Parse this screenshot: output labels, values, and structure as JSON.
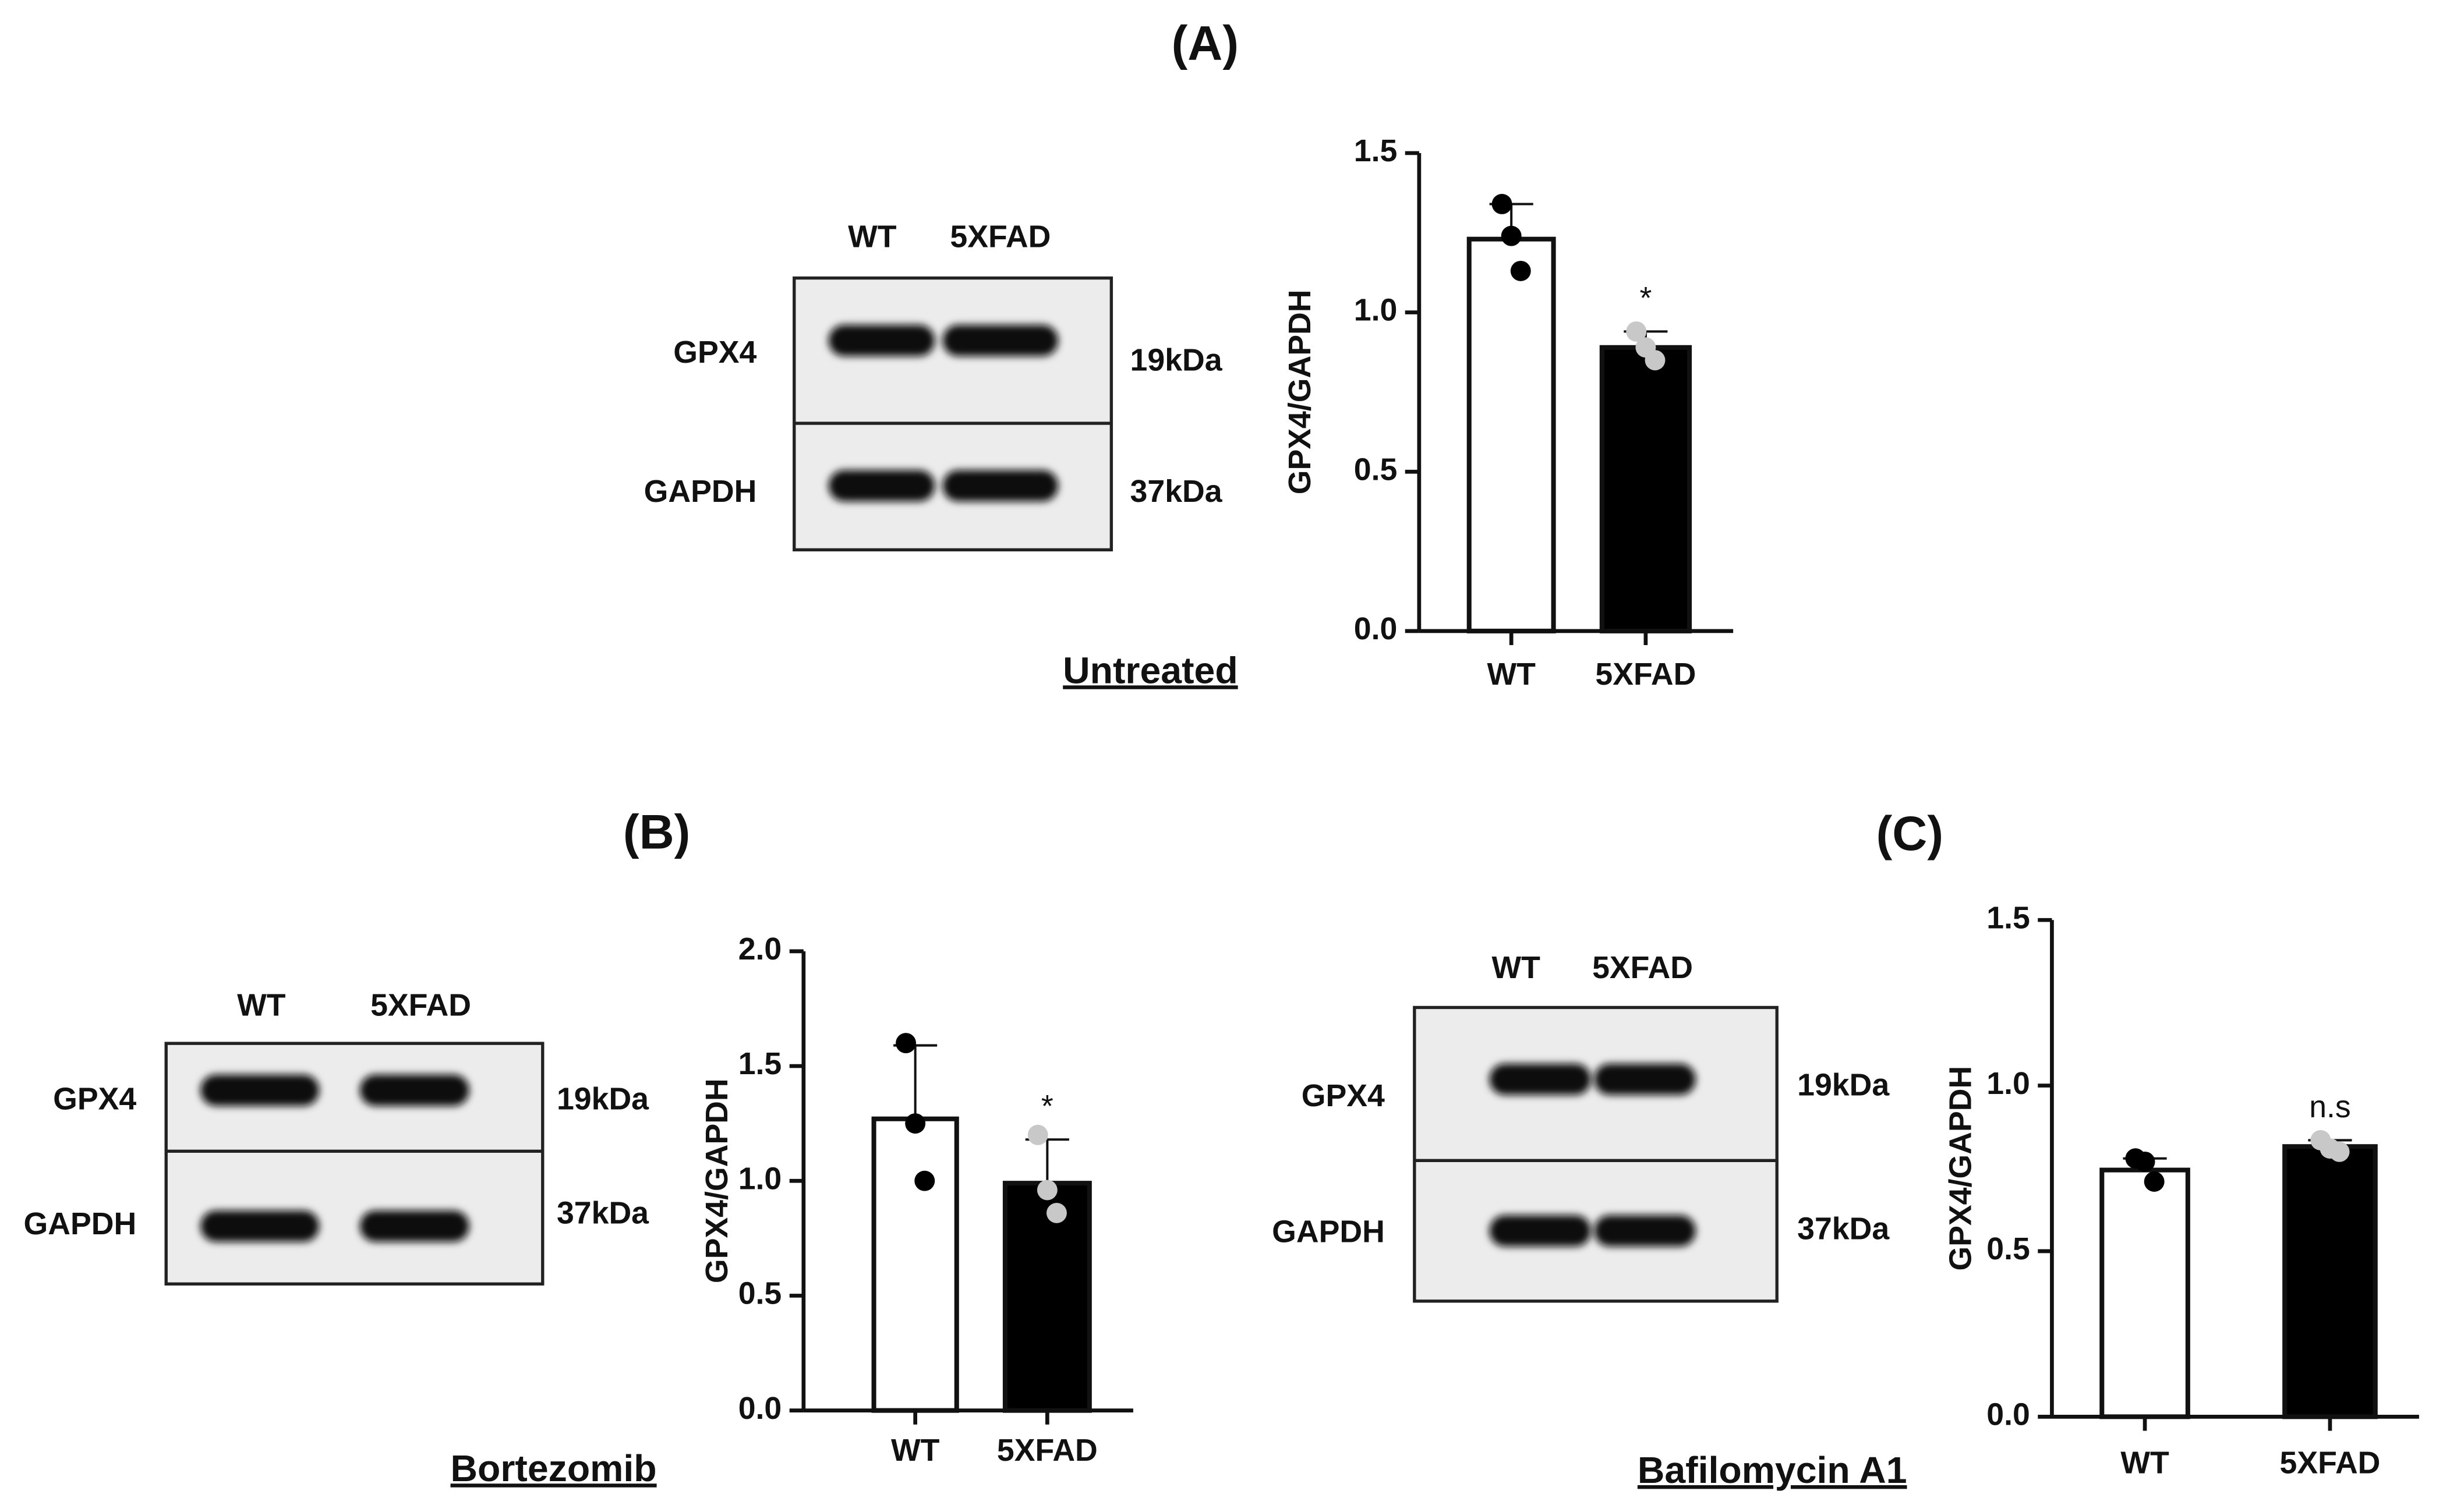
{
  "panels": [
    {
      "title": "(A)",
      "treatment": "Untreated",
      "blot": {
        "lanes": [
          "WT",
          "5XFAD"
        ],
        "rows": [
          "GPX4",
          "GAPDH"
        ],
        "sizes": [
          "19kDa",
          "37kDa"
        ]
      }
    },
    {
      "title": "(B)",
      "treatment": "Bortezomib",
      "blot": {
        "lanes": [
          "WT",
          "5XFAD"
        ],
        "rows": [
          "GPX4",
          "GAPDH"
        ],
        "sizes": [
          "19kDa",
          "37kDa"
        ]
      }
    },
    {
      "title": "(C)",
      "treatment": "Bafilomycin A1",
      "blot": {
        "lanes": [
          "WT",
          "5XFAD"
        ],
        "rows": [
          "GPX4",
          "GAPDH"
        ],
        "sizes": [
          "19kDa",
          "37kDa"
        ]
      }
    }
  ],
  "chart_data": [
    {
      "type": "bar",
      "y_label": "GPX4/GAPDH",
      "categories": [
        "WT",
        "5XFAD"
      ],
      "values": [
        1.23,
        0.89
      ],
      "errors": [
        0.11,
        0.05
      ],
      "points": [
        [
          1.34,
          1.24,
          1.13
        ],
        [
          0.94,
          0.89,
          0.85
        ]
      ],
      "colors": [
        "#ffffff",
        "#000000"
      ],
      "point_colors": [
        "#000000",
        "#c8c8c8"
      ],
      "annotation": "*",
      "ylim": [
        0,
        1.5
      ],
      "yticks": [
        {
          "value": 0,
          "label": "0.0"
        },
        0.5,
        {
          "value": 1,
          "label": "1.0"
        },
        1.5
      ]
    },
    {
      "type": "bar",
      "y_label": "GPX4/GAPDH",
      "categories": [
        "WT",
        "5XFAD"
      ],
      "values": [
        1.27,
        0.99
      ],
      "errors": [
        0.32,
        0.19
      ],
      "points": [
        [
          1.6,
          1.25,
          1.0
        ],
        [
          1.2,
          0.96,
          0.86
        ]
      ],
      "colors": [
        "#ffffff",
        "#000000"
      ],
      "point_colors": [
        "#000000",
        "#c8c8c8"
      ],
      "annotation": "*",
      "ylim": [
        0,
        2
      ],
      "yticks": [
        {
          "value": 0,
          "label": "0.0"
        },
        0.5,
        {
          "value": 1,
          "label": "1.0"
        },
        1.5,
        {
          "value": 2,
          "label": "2.0"
        }
      ]
    },
    {
      "type": "bar",
      "y_label": "GPX4/GAPDH",
      "categories": [
        "WT",
        "5XFAD"
      ],
      "values": [
        0.745,
        0.816
      ],
      "errors": [
        0.035,
        0.019
      ],
      "points": [
        [
          0.78,
          0.77,
          0.71
        ],
        [
          0.835,
          0.81,
          0.8
        ]
      ],
      "colors": [
        "#ffffff",
        "#000000"
      ],
      "point_colors": [
        "#000000",
        "#c8c8c8"
      ],
      "annotation": "n.s",
      "ylim": [
        0,
        1.5
      ],
      "yticks": [
        {
          "value": 0,
          "label": "0.0"
        },
        0.5,
        {
          "value": 1,
          "label": "1.0"
        },
        1.5
      ]
    }
  ]
}
